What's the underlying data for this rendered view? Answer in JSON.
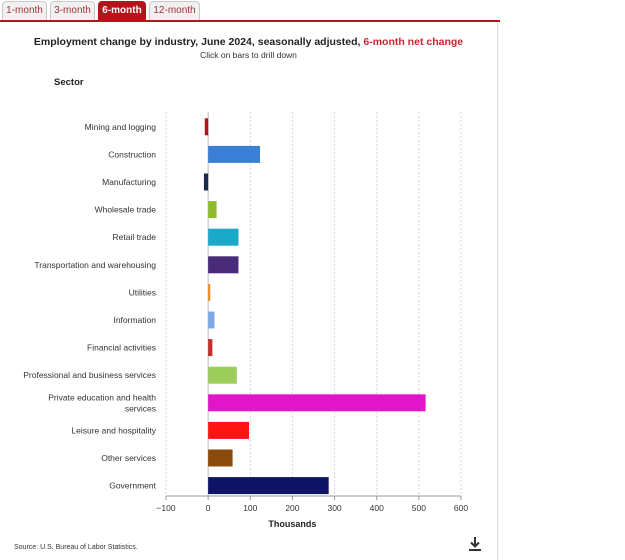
{
  "tabs": [
    {
      "label": "1-month",
      "active": false
    },
    {
      "label": "3-month",
      "active": false
    },
    {
      "label": "6-month",
      "active": true
    },
    {
      "label": "12-month",
      "active": false
    }
  ],
  "title_main": "Employment change by industry, June 2024, seasonally adjusted, ",
  "title_highlight": "6-month net change",
  "subtitle": "Click on bars to drill down",
  "sector_label": "Sector",
  "source": "Source: U.S. Bureau of Labor Statistics.",
  "download_icon": "download-icon",
  "colors": {
    "accent": "#b4151b",
    "highlight": "#c6262e"
  },
  "chart_data": {
    "type": "bar",
    "orientation": "horizontal",
    "xlabel": "Thousands",
    "xlim": [
      -100,
      600
    ],
    "xticks": [
      -100,
      0,
      100,
      200,
      300,
      400,
      500,
      600
    ],
    "xtick_labels": [
      "−100",
      "0",
      "100",
      "200",
      "300",
      "400",
      "500",
      "600"
    ],
    "grid": true,
    "categories": [
      "Mining and logging",
      "Construction",
      "Manufacturing",
      "Wholesale trade",
      "Retail trade",
      "Transportation and warehousing",
      "Utilities",
      "Information",
      "Financial activities",
      "Professional and business services",
      "Private education and health services",
      "Leisure and hospitality",
      "Other services",
      "Government"
    ],
    "values": [
      -8,
      123,
      -10,
      20,
      72,
      72,
      5,
      15,
      10,
      68,
      516,
      97,
      58,
      286
    ],
    "colors": [
      "#a31a1a",
      "#3a7fd5",
      "#1a2a4a",
      "#8dbb2c",
      "#1ba8c9",
      "#4a2b7a",
      "#f08a24",
      "#7fa8e8",
      "#c62c2c",
      "#9ccc5a",
      "#e216c9",
      "#ff1414",
      "#8b4a0b",
      "#0d1466"
    ]
  },
  "annotation": {
    "note": ""
  }
}
